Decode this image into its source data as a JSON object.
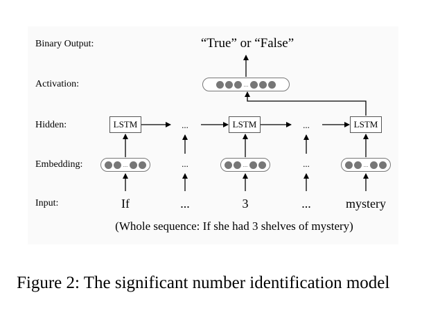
{
  "rows": {
    "output_label": "Binary Output:",
    "activation_label": "Activation:",
    "hidden_label": "Hidden:",
    "embedding_label": "Embedding:",
    "input_label": "Input:"
  },
  "output_text": "“True”  or  “False”",
  "lstm_label": "LSTM",
  "ellipsis": "...",
  "inputs": [
    "If",
    "...",
    "3",
    "...",
    "mystery"
  ],
  "sequence_note": "(Whole sequence: If she had 3 shelves of mystery)",
  "caption": "Figure 2:  The significant number identification model"
}
